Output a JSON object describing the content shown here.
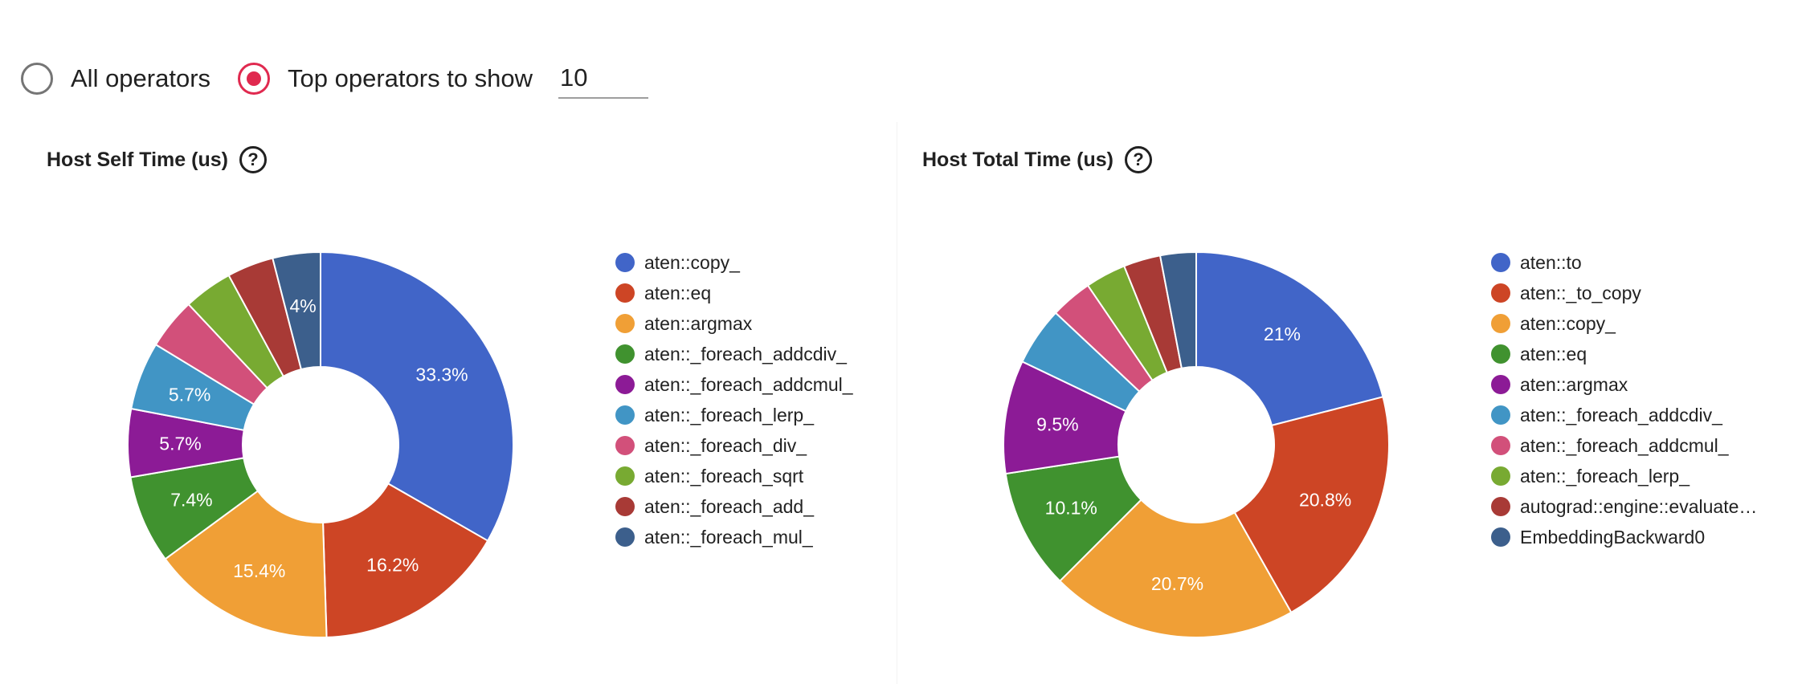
{
  "controls": {
    "all_label": "All operators",
    "top_label": "Top operators to show",
    "top_value": "10",
    "selected": "top"
  },
  "help_glyph": "?",
  "chart_data": [
    {
      "type": "pie",
      "donut": true,
      "title": "Host Self Time (us)",
      "legend_position": "right",
      "categories": [
        "aten::copy_",
        "aten::eq",
        "aten::argmax",
        "aten::_foreach_addcdiv_",
        "aten::_foreach_addcmul_",
        "aten::_foreach_lerp_",
        "aten::_foreach_div_",
        "aten::_foreach_sqrt",
        "aten::_foreach_add_",
        "aten::_foreach_mul_"
      ],
      "values": [
        33.3,
        16.2,
        15.4,
        7.4,
        5.7,
        5.7,
        4.3,
        4.1,
        3.9,
        4.0
      ],
      "labels": [
        "33.3%",
        "16.2%",
        "15.4%",
        "7.4%",
        "5.7%",
        "5.7%",
        "",
        "",
        "",
        "4%"
      ],
      "colors": [
        "#4165c8",
        "#cd4525",
        "#f09f36",
        "#40922f",
        "#8c1b96",
        "#4195c5",
        "#d2507a",
        "#78aa32",
        "#a83a36",
        "#3c5f8c"
      ]
    },
    {
      "type": "pie",
      "donut": true,
      "title": "Host Total Time (us)",
      "legend_position": "right",
      "categories": [
        "aten::to",
        "aten::_to_copy",
        "aten::copy_",
        "aten::eq",
        "aten::argmax",
        "aten::_foreach_addcdiv_",
        "aten::_foreach_addcmul_",
        "aten::_foreach_lerp_",
        "autograd::engine::evaluate…",
        "EmbeddingBackward0"
      ],
      "values": [
        21.0,
        20.8,
        20.7,
        10.1,
        9.5,
        4.9,
        3.5,
        3.4,
        3.1,
        3.0
      ],
      "labels": [
        "21%",
        "20.8%",
        "20.7%",
        "10.1%",
        "9.5%",
        "",
        "",
        "",
        "",
        ""
      ],
      "colors": [
        "#4165c8",
        "#cd4525",
        "#f09f36",
        "#40922f",
        "#8c1b96",
        "#4195c5",
        "#d2507a",
        "#78aa32",
        "#a83a36",
        "#3c5f8c"
      ]
    }
  ]
}
